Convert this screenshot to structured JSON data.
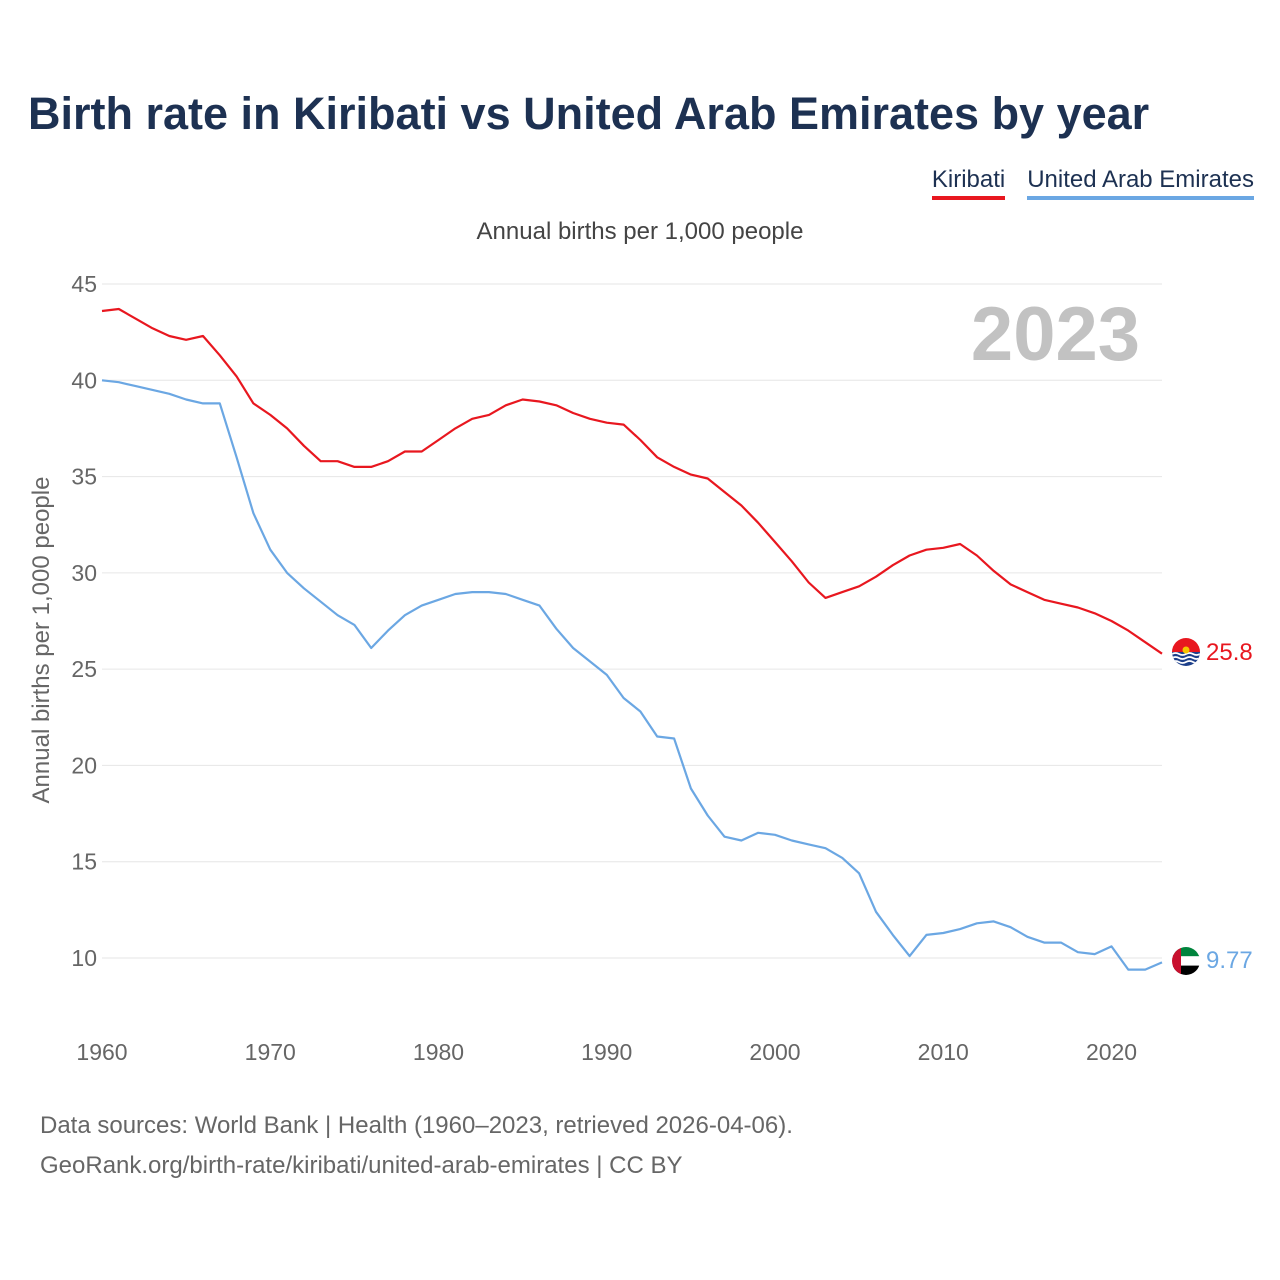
{
  "title": "Birth rate in Kiribati vs United Arab Emirates by year",
  "subtitle": "Annual births per 1,000 people",
  "watermark_year": "2023",
  "footer": {
    "line1": "Data sources: World Bank | Health (1960–2023, retrieved 2026-04-06).",
    "line2": "GeoRank.org/birth-rate/kiribati/united-arab-emirates | CC BY"
  },
  "chart_data": {
    "type": "line",
    "title": "Birth rate in Kiribati vs United Arab Emirates by year",
    "ylabel": "Annual births per 1,000 people",
    "xlabel": "",
    "xlim": [
      1960,
      2023
    ],
    "ylim": [
      7,
      45
    ],
    "yticks": [
      10,
      15,
      20,
      25,
      30,
      35,
      40,
      45
    ],
    "xticks": [
      1960,
      1970,
      1980,
      1990,
      2000,
      2010,
      2020
    ],
    "grid": true,
    "legend": "top-right",
    "x": [
      1960,
      1961,
      1962,
      1963,
      1964,
      1965,
      1966,
      1967,
      1968,
      1969,
      1970,
      1971,
      1972,
      1973,
      1974,
      1975,
      1976,
      1977,
      1978,
      1979,
      1980,
      1981,
      1982,
      1983,
      1984,
      1985,
      1986,
      1987,
      1988,
      1989,
      1990,
      1991,
      1992,
      1993,
      1994,
      1995,
      1996,
      1997,
      1998,
      1999,
      2000,
      2001,
      2002,
      2003,
      2004,
      2005,
      2006,
      2007,
      2008,
      2009,
      2010,
      2011,
      2012,
      2013,
      2014,
      2015,
      2016,
      2017,
      2018,
      2019,
      2020,
      2021,
      2022,
      2023
    ],
    "series": [
      {
        "name": "Kiribati",
        "color": "#e8171f",
        "end_label": "25.8",
        "values": [
          43.6,
          43.7,
          43.2,
          42.7,
          42.3,
          42.1,
          42.3,
          41.3,
          40.2,
          38.8,
          38.2,
          37.5,
          36.6,
          35.8,
          35.8,
          35.5,
          35.5,
          35.8,
          36.3,
          36.3,
          36.9,
          37.5,
          38.0,
          38.2,
          38.7,
          39.0,
          38.9,
          38.7,
          38.3,
          38.0,
          37.8,
          37.7,
          36.9,
          36.0,
          35.5,
          35.1,
          34.9,
          34.2,
          33.5,
          32.6,
          31.6,
          30.6,
          29.5,
          28.7,
          29.0,
          29.3,
          29.8,
          30.4,
          30.9,
          31.2,
          31.3,
          31.5,
          30.9,
          30.1,
          29.4,
          29.0,
          28.6,
          28.4,
          28.2,
          27.9,
          27.5,
          27.0,
          26.4,
          25.8
        ]
      },
      {
        "name": "United Arab Emirates",
        "color": "#6ba7e3",
        "end_label": "9.77",
        "values": [
          40.0,
          39.9,
          39.7,
          39.5,
          39.3,
          39.0,
          38.8,
          38.8,
          36.0,
          33.1,
          31.2,
          30.0,
          29.2,
          28.5,
          27.8,
          27.3,
          26.1,
          27.0,
          27.8,
          28.3,
          28.6,
          28.9,
          29.0,
          29.0,
          28.9,
          28.6,
          28.3,
          27.1,
          26.1,
          25.4,
          24.7,
          23.5,
          22.8,
          21.5,
          21.4,
          18.8,
          17.4,
          16.3,
          16.1,
          16.5,
          16.4,
          16.1,
          15.9,
          15.7,
          15.2,
          14.4,
          12.4,
          11.2,
          10.1,
          11.2,
          11.3,
          11.5,
          11.8,
          11.9,
          11.6,
          11.1,
          10.8,
          10.8,
          10.3,
          10.2,
          10.6,
          9.4,
          9.4,
          9.77
        ]
      }
    ]
  }
}
